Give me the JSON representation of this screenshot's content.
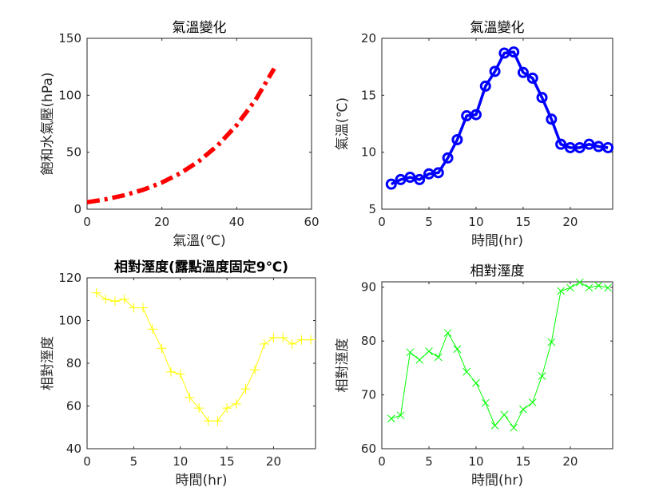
{
  "chart_data": [
    {
      "type": "line",
      "title": "氣溫變化",
      "xlabel": "氣溫(℃)",
      "ylabel": "飽和水氣壓(hPa)",
      "xlim": [
        0,
        60
      ],
      "ylim": [
        0,
        150
      ],
      "xticks": [
        0,
        20,
        40,
        60
      ],
      "yticks": [
        0,
        50,
        100,
        150
      ],
      "line_style": "dash-dot",
      "color": "#ff0000",
      "grid": false,
      "series": [
        {
          "x": [
            0,
            5,
            10,
            15,
            20,
            25,
            30,
            35,
            40,
            45,
            50
          ],
          "y": [
            6.1,
            8.7,
            12.3,
            17.0,
            23.4,
            31.7,
            42.4,
            56.2,
            73.8,
            95.8,
            123.4
          ]
        }
      ]
    },
    {
      "type": "line",
      "title": "氣溫變化",
      "xlabel": "時間(hr)",
      "ylabel": "氣溫(℃)",
      "xlim": [
        0,
        24.5
      ],
      "ylim": [
        5,
        20
      ],
      "xticks": [
        0,
        5,
        10,
        15,
        20
      ],
      "yticks": [
        5,
        10,
        15,
        20
      ],
      "marker": "circle",
      "color": "#0000ff",
      "grid": false,
      "series": [
        {
          "x": [
            1,
            2,
            3,
            4,
            5,
            6,
            7,
            8,
            9,
            10,
            11,
            12,
            13,
            14,
            15,
            16,
            17,
            18,
            19,
            20,
            21,
            22,
            23,
            24
          ],
          "y": [
            7.2,
            7.6,
            7.8,
            7.6,
            8.1,
            8.2,
            9.5,
            11.1,
            13.2,
            13.3,
            15.8,
            17.1,
            18.7,
            18.8,
            17.0,
            16.5,
            14.8,
            12.9,
            10.7,
            10.4,
            10.4,
            10.7,
            10.5,
            10.4
          ]
        }
      ]
    },
    {
      "type": "line",
      "title": "相對溼度(露點溫度固定9℃)",
      "xlabel": "時間(hr)",
      "ylabel": "相對溼度",
      "xlim": [
        0,
        24.5
      ],
      "ylim": [
        40,
        120
      ],
      "xticks": [
        0,
        5,
        10,
        15,
        20
      ],
      "yticks": [
        40,
        60,
        80,
        100,
        120
      ],
      "marker": "plus",
      "color": "#ffff00",
      "grid": false,
      "series": [
        {
          "x": [
            1,
            2,
            3,
            4,
            5,
            6,
            7,
            8,
            9,
            10,
            11,
            12,
            13,
            14,
            15,
            16,
            17,
            18,
            19,
            20,
            21,
            22,
            23,
            24
          ],
          "y": [
            113,
            110,
            109,
            110,
            106,
            106,
            96,
            87,
            76,
            75,
            64,
            59,
            53,
            53,
            59,
            61,
            68,
            77,
            89,
            92,
            92,
            89,
            91,
            91
          ]
        }
      ]
    },
    {
      "type": "line",
      "title": "相對溼度",
      "xlabel": "時間(hr)",
      "ylabel": "相對溼度",
      "xlim": [
        0,
        24.5
      ],
      "ylim": [
        60,
        91
      ],
      "xticks": [
        0,
        5,
        10,
        15,
        20
      ],
      "yticks": [
        60,
        70,
        80,
        90
      ],
      "marker": "x",
      "color": "#00ff00",
      "grid": false,
      "series": [
        {
          "x": [
            1,
            2,
            3,
            4,
            5,
            6,
            7,
            8,
            9,
            10,
            11,
            12,
            13,
            14,
            15,
            16,
            17,
            18,
            19,
            20,
            21,
            22,
            23,
            24
          ],
          "y": [
            65.6,
            66.2,
            77.9,
            76.5,
            78.1,
            77.0,
            81.5,
            78.5,
            74.3,
            72.2,
            68.5,
            64.3,
            66.3,
            63.9,
            67.3,
            68.6,
            73.5,
            79.8,
            89.3,
            89.9,
            90.9,
            89.9,
            90.3,
            89.9
          ]
        }
      ]
    }
  ]
}
